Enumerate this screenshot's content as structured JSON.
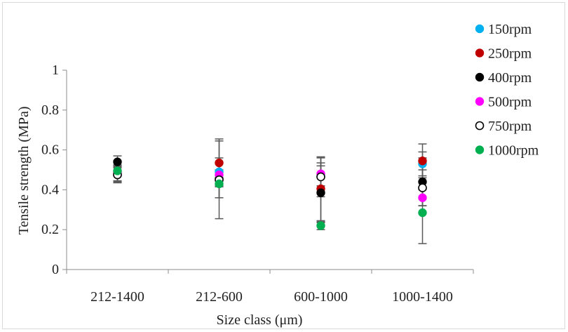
{
  "chart_data": {
    "type": "scatter",
    "title": "",
    "xlabel": "Size class (μm)",
    "ylabel": "Tensile strength (MPa)",
    "ylim": [
      0,
      1
    ],
    "yticks": [
      "0",
      "0.2",
      "0.4",
      "0.6",
      "0.8",
      "1"
    ],
    "categories": [
      "212-1400",
      "212-600",
      "600-1000",
      "1000-1400"
    ],
    "grid": false,
    "legend_position": "right",
    "series": [
      {
        "name": "150rpm",
        "color": "#00b0f0",
        "fill": "filled",
        "values": [
          0.48,
          0.49,
          0.47,
          0.53
        ],
        "err": [
          0.04,
          0.07,
          0.05,
          0.06
        ]
      },
      {
        "name": "250rpm",
        "color": "#c00000",
        "fill": "filled",
        "values": [
          0.49,
          0.535,
          0.405,
          0.545
        ],
        "err": [
          0.05,
          0.11,
          0.16,
          0.085
        ]
      },
      {
        "name": "400rpm",
        "color": "#000000",
        "fill": "filled",
        "values": [
          0.54,
          0.455,
          0.385,
          0.44
        ],
        "err": [
          0.03,
          0.2,
          0.15,
          0.12
        ]
      },
      {
        "name": "500rpm",
        "color": "#ff00ff",
        "fill": "filled",
        "values": [
          0.485,
          0.475,
          0.48,
          0.36
        ],
        "err": [
          0.04,
          0.06,
          0.08,
          0.04
        ]
      },
      {
        "name": "750rpm",
        "color": "#000000",
        "fill": "hollow",
        "values": [
          0.475,
          0.45,
          0.465,
          0.41
        ],
        "err": [
          0.04,
          0.09,
          0.1,
          0.09
        ]
      },
      {
        "name": "1000rpm",
        "color": "#00b050",
        "fill": "filled",
        "values": [
          0.495,
          0.43,
          0.22,
          0.285
        ],
        "err": [
          0.05,
          0.07,
          0.02,
          0.155
        ]
      }
    ]
  }
}
